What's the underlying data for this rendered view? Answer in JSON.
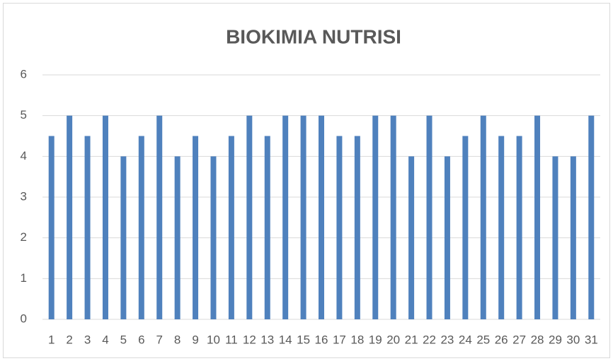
{
  "chart_data": {
    "type": "bar",
    "title": "BIOKIMIA NUTRISI",
    "categories": [
      "1",
      "2",
      "3",
      "4",
      "5",
      "6",
      "7",
      "8",
      "9",
      "10",
      "11",
      "12",
      "13",
      "14",
      "15",
      "16",
      "17",
      "18",
      "19",
      "20",
      "21",
      "22",
      "23",
      "24",
      "25",
      "26",
      "27",
      "28",
      "29",
      "30",
      "31"
    ],
    "values": [
      4.5,
      5,
      4.5,
      5,
      4,
      4.5,
      5,
      4,
      4.5,
      4,
      4.5,
      5,
      4.5,
      5,
      5,
      5,
      4.5,
      4.5,
      5,
      5,
      4,
      5,
      4,
      4.5,
      5,
      4.5,
      4.5,
      5,
      4,
      4,
      5
    ],
    "color": "#4f81bd",
    "ylim": [
      0,
      6
    ],
    "yticks": [
      0,
      1,
      2,
      3,
      4,
      5,
      6
    ],
    "grid": true
  }
}
